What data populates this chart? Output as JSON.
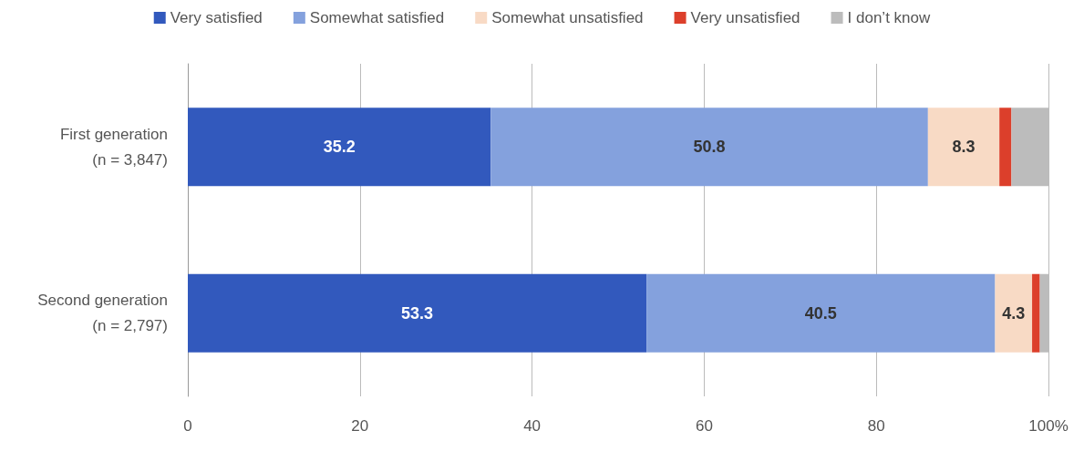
{
  "chart_data": {
    "type": "bar",
    "orientation": "horizontal",
    "stacked": true,
    "categories": [
      "First generation\n(n = 3,847)",
      "Second generation\n(n = 2,797)"
    ],
    "series": [
      {
        "name": "Very satisfied",
        "color": "#3259bd",
        "values": [
          35.2,
          53.3
        ],
        "value_labels": [
          "35.2",
          "53.3"
        ]
      },
      {
        "name": "Somewhat satisfied",
        "color": "#84a1dd",
        "values": [
          50.8,
          40.5
        ],
        "value_labels": [
          "50.8",
          "40.5"
        ]
      },
      {
        "name": "Somewhat unsatisfied",
        "color": "#f8dac5",
        "values": [
          8.3,
          4.3
        ],
        "value_labels": [
          "8.3",
          "4.3"
        ]
      },
      {
        "name": "Very unsatisfied",
        "color": "#dc3f2b",
        "values": [
          1.4,
          0.9
        ]
      },
      {
        "name": "I don’t know",
        "color": "#bcbcbc",
        "values": [
          4.3,
          1.0
        ]
      }
    ],
    "xlim": [
      0,
      100
    ],
    "xticks": [
      0,
      20,
      40,
      60,
      80,
      {
        "value": 100,
        "label": "100%"
      }
    ],
    "grid": "x",
    "legend": "top"
  }
}
